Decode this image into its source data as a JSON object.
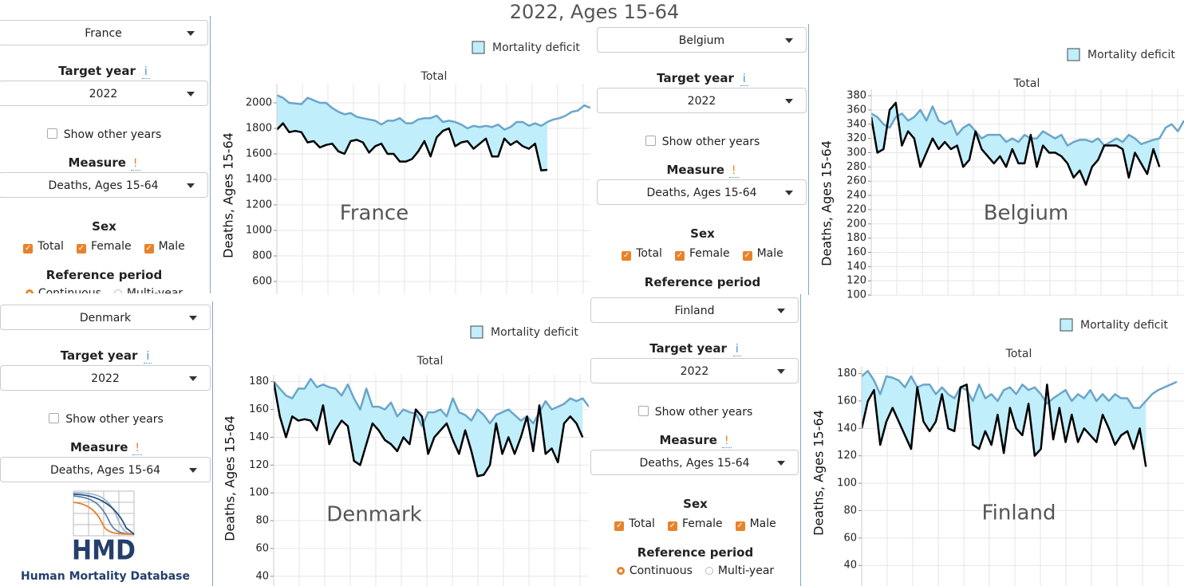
{
  "title": "2022, Ages 15-64",
  "panels": [
    {
      "country": "France",
      "target_year_label": "Target year",
      "info": "i",
      "year": "2022",
      "show_other": "Show other years",
      "measure_label": "Measure",
      "warn": "!",
      "measure": "Deaths, Ages 15-64",
      "sex_label": "Sex",
      "sex_options": [
        "Total",
        "Female",
        "Male"
      ],
      "ref_label": "Reference period",
      "ref_options": [
        "Continuous",
        "Multi-year"
      ]
    },
    {
      "country": "Belgium",
      "target_year_label": "Target year",
      "info": "i",
      "year": "2022",
      "show_other": "Show other years",
      "measure_label": "Measure",
      "warn": "!",
      "measure": "Deaths, Ages 15-64",
      "sex_label": "Sex",
      "sex_options": [
        "Total",
        "Female",
        "Male"
      ],
      "ref_label": "Reference period"
    },
    {
      "country": "Denmark",
      "target_year_label": "Target year",
      "info": "i",
      "year": "2022",
      "show_other": "Show other years",
      "measure_label": "Measure",
      "warn": "!",
      "measure": "Deaths, Ages 15-64",
      "logo": {
        "text": "HMD",
        "caption": "Human Mortality Database"
      }
    },
    {
      "country": "Finland",
      "target_year_label": "Target year",
      "info": "i",
      "year": "2022",
      "show_other": "Show other years",
      "measure_label": "Measure",
      "warn": "!",
      "measure": "Deaths, Ages 15-64",
      "sex_label": "Sex",
      "sex_options": [
        "Total",
        "Female",
        "Male"
      ],
      "ref_label": "Reference period",
      "ref_options": [
        "Continuous",
        "Multi-year"
      ]
    }
  ],
  "chart_data": [
    {
      "type": "line",
      "title": "Total",
      "ylabel": "Deaths, Ages 15-64",
      "annotation": "France",
      "legend": {
        "label": "Mortality deficit",
        "color": "#c0eefb"
      },
      "grid": true,
      "ylim": [
        500,
        2150
      ],
      "yticks": [
        600,
        800,
        1000,
        1200,
        1400,
        1600,
        1800,
        2000
      ],
      "series": [
        {
          "color": "#6ba5c9",
          "values": [
            2060,
            2040,
            2000,
            1995,
            1990,
            2040,
            2020,
            2000,
            2000,
            1960,
            1930,
            1910,
            1920,
            1890,
            1880,
            1870,
            1860,
            1830,
            1860,
            1860,
            1880,
            1840,
            1840,
            1870,
            1880,
            1880,
            1900,
            1850,
            1860,
            1850,
            1830,
            1800,
            1820,
            1810,
            1820,
            1810,
            1830,
            1790,
            1810,
            1850,
            1850,
            1820,
            1840,
            1820,
            1850,
            1870,
            1880,
            1900,
            1930,
            1940,
            1980,
            1960
          ]
        },
        {
          "color": "#000000",
          "values": [
            1790,
            1840,
            1770,
            1780,
            1770,
            1690,
            1700,
            1650,
            1670,
            1680,
            1620,
            1600,
            1700,
            1710,
            1690,
            1610,
            1660,
            1680,
            1600,
            1600,
            1540,
            1540,
            1560,
            1620,
            1700,
            1580,
            1730,
            1780,
            1800,
            1660,
            1690,
            1700,
            1640,
            1680,
            1720,
            1580,
            1580,
            1720,
            1670,
            1700,
            1660,
            1640,
            1680,
            1470,
            1475,
            null,
            null,
            null,
            null,
            null,
            null,
            null
          ]
        }
      ]
    },
    {
      "type": "line",
      "title": "Total",
      "ylabel": "Deaths, Ages 15-64",
      "annotation": "Belgium",
      "legend": {
        "label": "Mortality deficit",
        "color": "#c0eefb"
      },
      "grid": true,
      "ylim": [
        99,
        389
      ],
      "yticks": [
        100,
        120,
        140,
        160,
        180,
        200,
        220,
        240,
        260,
        280,
        300,
        320,
        340,
        360,
        380
      ],
      "series": [
        {
          "color": "#6ba5c9",
          "values": [
            355,
            350,
            340,
            335,
            350,
            355,
            345,
            350,
            360,
            345,
            365,
            345,
            340,
            345,
            325,
            335,
            340,
            330,
            320,
            325,
            325,
            325,
            315,
            320,
            315,
            325,
            320,
            320,
            330,
            325,
            320,
            325,
            310,
            315,
            318,
            318,
            315,
            320,
            310,
            315,
            320,
            315,
            325,
            320,
            312,
            315,
            318,
            320,
            335,
            340,
            330,
            345
          ]
        },
        {
          "color": "#000000",
          "values": [
            350,
            300,
            305,
            360,
            370,
            310,
            330,
            320,
            280,
            300,
            320,
            305,
            315,
            305,
            310,
            280,
            290,
            330,
            305,
            295,
            285,
            295,
            280,
            305,
            285,
            285,
            325,
            280,
            310,
            300,
            300,
            295,
            285,
            265,
            275,
            255,
            280,
            290,
            310,
            310,
            310,
            305,
            265,
            300,
            285,
            270,
            305,
            280,
            null,
            null,
            null,
            null
          ]
        }
      ]
    },
    {
      "type": "line",
      "title": "Total",
      "ylabel": "Deaths, Ages 15-64",
      "annotation": "Denmark",
      "legend": {
        "label": "Mortality deficit",
        "color": "#c0eefb"
      },
      "grid": true,
      "ylim": [
        33,
        185
      ],
      "yticks": [
        40,
        60,
        80,
        100,
        120,
        140,
        160,
        180
      ],
      "series": [
        {
          "color": "#6ba5c9",
          "values": [
            180,
            175,
            170,
            168,
            175,
            175,
            182,
            176,
            178,
            176,
            175,
            170,
            178,
            168,
            160,
            175,
            162,
            162,
            160,
            165,
            155,
            160,
            158,
            157,
            148,
            158,
            158,
            160,
            155,
            168,
            158,
            156,
            152,
            160,
            156,
            150,
            156,
            158,
            160,
            156,
            152,
            155,
            150,
            158,
            166,
            160,
            162,
            164,
            168,
            166,
            168,
            162
          ]
        },
        {
          "color": "#000000",
          "values": [
            180,
            155,
            140,
            155,
            152,
            153,
            152,
            145,
            163,
            135,
            145,
            152,
            148,
            123,
            120,
            135,
            150,
            145,
            138,
            135,
            130,
            140,
            135,
            160,
            155,
            128,
            140,
            145,
            150,
            138,
            128,
            145,
            130,
            112,
            113,
            120,
            150,
            128,
            140,
            128,
            140,
            155,
            130,
            163,
            128,
            132,
            122,
            150,
            155,
            150,
            140,
            null
          ]
        }
      ]
    },
    {
      "type": "line",
      "title": "Total",
      "ylabel": "Deaths, Ages 15-64",
      "annotation": "Finland",
      "legend": {
        "label": "Mortality deficit",
        "color": "#c0eefb"
      },
      "grid": true,
      "ylim": [
        25,
        185
      ],
      "yticks": [
        40,
        60,
        80,
        100,
        120,
        140,
        160,
        180
      ],
      "series": [
        {
          "color": "#6ba5c9",
          "values": [
            178,
            182,
            175,
            165,
            178,
            177,
            175,
            170,
            178,
            170,
            172,
            172,
            165,
            170,
            165,
            162,
            170,
            168,
            160,
            172,
            162,
            165,
            160,
            168,
            170,
            165,
            172,
            168,
            170,
            165,
            158,
            162,
            165,
            168,
            160,
            165,
            162,
            168,
            160,
            165,
            160,
            165,
            162,
            162,
            155,
            155,
            160,
            165,
            168,
            170,
            172,
            174
          ]
        },
        {
          "color": "#000000",
          "values": [
            140,
            160,
            168,
            128,
            145,
            155,
            145,
            135,
            125,
            170,
            145,
            138,
            145,
            165,
            140,
            138,
            170,
            172,
            128,
            125,
            138,
            128,
            150,
            122,
            155,
            140,
            135,
            158,
            120,
            125,
            172,
            132,
            155,
            130,
            150,
            130,
            140,
            135,
            130,
            150,
            140,
            128,
            135,
            138,
            125,
            140,
            112,
            null,
            null,
            null,
            null,
            null
          ]
        }
      ]
    }
  ]
}
